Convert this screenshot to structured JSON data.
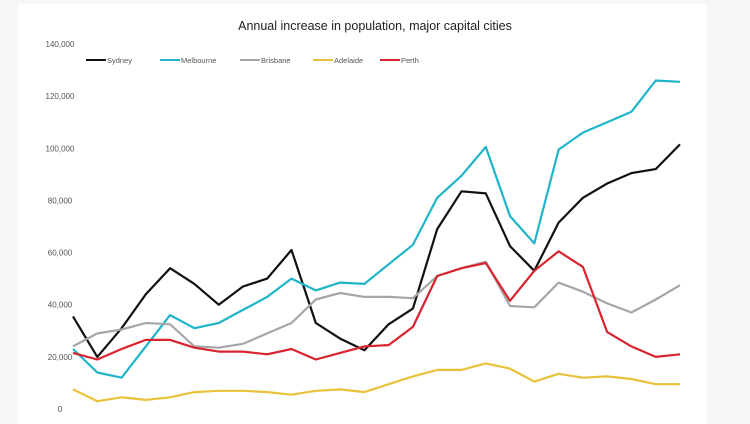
{
  "chart_data": {
    "type": "line",
    "title": "Annual increase in population, major capital cities",
    "xlabel": "",
    "ylabel": "",
    "ylim": [
      0,
      140000
    ],
    "yticks": [
      "0",
      "20,000",
      "40,000",
      "60,000",
      "80,000",
      "100,000",
      "120,000",
      "140,000"
    ],
    "ytick_values": [
      0,
      20000,
      40000,
      60000,
      80000,
      100000,
      120000,
      140000
    ],
    "grid": false,
    "legend": "top-left",
    "x": [
      1,
      2,
      3,
      4,
      5,
      6,
      7,
      8,
      9,
      10,
      11,
      12,
      13,
      14,
      15,
      16,
      17,
      18,
      19,
      20,
      21,
      22,
      23,
      24,
      25,
      26
    ],
    "series": [
      {
        "name": "Sydney",
        "color": "#111111",
        "values": [
          35500,
          20000,
          31000,
          44000,
          54000,
          48000,
          40000,
          47000,
          50000,
          61000,
          33000,
          27000,
          22500,
          32500,
          38500,
          69000,
          83500,
          82700,
          62500,
          53000,
          71500,
          81000,
          86500,
          90500,
          92000,
          101500
        ]
      },
      {
        "name": "Melbourne",
        "color": "#1fb5c9",
        "values": [
          23000,
          14000,
          12000,
          24000,
          36000,
          31000,
          33000,
          38000,
          43000,
          50000,
          45500,
          48500,
          48000,
          55500,
          63000,
          81000,
          89500,
          100500,
          74000,
          63500,
          99500,
          106000,
          110000,
          114000,
          126000,
          125500
        ]
      },
      {
        "name": "Brisbane",
        "color": "#a6a6a6",
        "values": [
          24000,
          29000,
          30500,
          33000,
          32500,
          24000,
          23500,
          25000,
          29000,
          33000,
          42000,
          44500,
          43000,
          43000,
          42500,
          51000,
          54000,
          56500,
          39500,
          39000,
          48500,
          45000,
          40500,
          37000,
          42000,
          47500
        ]
      },
      {
        "name": "Adelaide",
        "color": "#e8c23a",
        "values": [
          7500,
          3000,
          4500,
          3500,
          4500,
          6500,
          7000,
          7000,
          6500,
          5500,
          7000,
          7500,
          6500,
          9500,
          12500,
          15000,
          15000,
          17500,
          15500,
          10500,
          13500,
          12000,
          12500,
          11500,
          9500,
          9500
        ]
      },
      {
        "name": "Perth",
        "color": "#d9232e",
        "values": [
          21500,
          19000,
          23000,
          26500,
          26500,
          23500,
          22000,
          22000,
          21000,
          23000,
          19000,
          21500,
          24000,
          24500,
          31500,
          51000,
          54000,
          56000,
          41500,
          53000,
          60500,
          54500,
          29500,
          24000,
          20000,
          21000
        ]
      }
    ]
  }
}
